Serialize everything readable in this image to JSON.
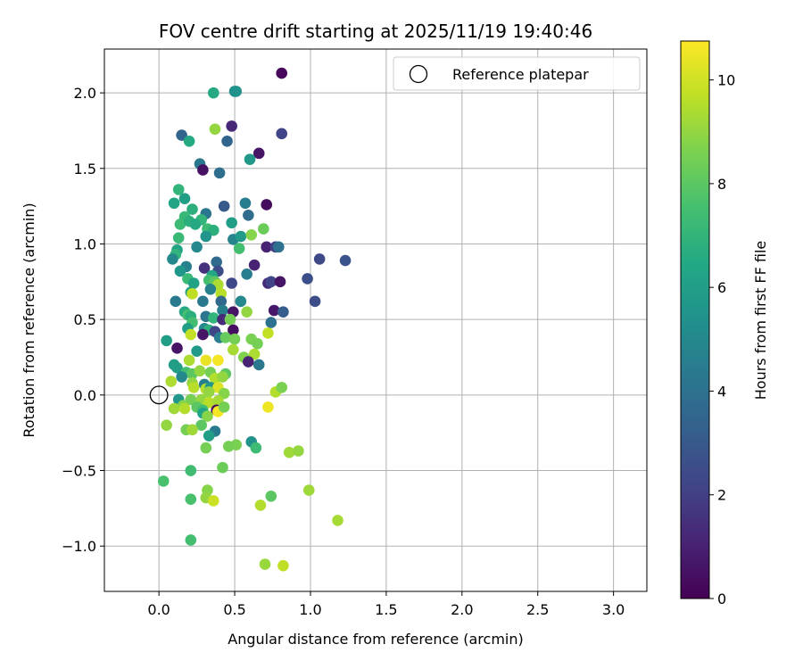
{
  "chart_data": {
    "type": "scatter",
    "title": "FOV centre drift starting at 2025/11/19 19:40:46",
    "xlabel": "Angular distance from reference (arcmin)",
    "ylabel": "Rotation from reference (arcmin)",
    "xlim": [
      -0.36,
      3.22
    ],
    "ylim": [
      -1.3,
      2.29
    ],
    "xticks": [
      0.0,
      0.5,
      1.0,
      1.5,
      2.0,
      2.5,
      3.0
    ],
    "xtick_labels": [
      "0.0",
      "0.5",
      "1.0",
      "1.5",
      "2.0",
      "2.5",
      "3.0"
    ],
    "yticks": [
      -1.0,
      -0.5,
      0.0,
      0.5,
      1.0,
      1.5,
      2.0
    ],
    "ytick_labels": [
      "−1.0",
      "−0.5",
      "0.0",
      "0.5",
      "1.0",
      "1.5",
      "2.0"
    ],
    "grid": true,
    "colorbar": {
      "label": "Hours from first FF file",
      "colormap": "viridis",
      "range": [
        0,
        10.75
      ],
      "ticks": [
        0,
        2,
        4,
        6,
        8,
        10
      ],
      "tick_labels": [
        "0",
        "2",
        "4",
        "6",
        "8",
        "10"
      ]
    },
    "legend": {
      "position": "top-right",
      "entries": [
        {
          "label": "Reference platepar",
          "marker": "open-circle"
        }
      ]
    },
    "reference_point": {
      "x": 0.0,
      "y": 0.0
    },
    "points": [
      {
        "x": 0.81,
        "y": 2.13,
        "h": 0.2
      },
      {
        "x": 0.5,
        "y": 2.01,
        "h": 5.3
      },
      {
        "x": 0.51,
        "y": 2.01,
        "h": 5.4
      },
      {
        "x": 0.36,
        "y": 2.0,
        "h": 6.5
      },
      {
        "x": 0.48,
        "y": 1.78,
        "h": 1.2
      },
      {
        "x": 0.37,
        "y": 1.76,
        "h": 9.0
      },
      {
        "x": 0.81,
        "y": 1.73,
        "h": 2.2
      },
      {
        "x": 0.15,
        "y": 1.72,
        "h": 3.5
      },
      {
        "x": 0.2,
        "y": 1.68,
        "h": 6.5
      },
      {
        "x": 0.45,
        "y": 1.68,
        "h": 3.5
      },
      {
        "x": 0.66,
        "y": 1.6,
        "h": 0.6
      },
      {
        "x": 0.6,
        "y": 1.56,
        "h": 5.7
      },
      {
        "x": 0.27,
        "y": 1.53,
        "h": 4.3
      },
      {
        "x": 0.29,
        "y": 1.49,
        "h": 0.5
      },
      {
        "x": 0.4,
        "y": 1.47,
        "h": 3.9
      },
      {
        "x": 0.13,
        "y": 1.36,
        "h": 7.0
      },
      {
        "x": 0.17,
        "y": 1.3,
        "h": 6.0
      },
      {
        "x": 0.1,
        "y": 1.27,
        "h": 6.3
      },
      {
        "x": 0.57,
        "y": 1.27,
        "h": 4.5
      },
      {
        "x": 0.43,
        "y": 1.25,
        "h": 3.0
      },
      {
        "x": 0.71,
        "y": 1.26,
        "h": 0.3
      },
      {
        "x": 0.22,
        "y": 1.23,
        "h": 6.8
      },
      {
        "x": 0.31,
        "y": 1.2,
        "h": 4.2
      },
      {
        "x": 0.59,
        "y": 1.19,
        "h": 3.8
      },
      {
        "x": 0.17,
        "y": 1.18,
        "h": 7.2
      },
      {
        "x": 0.28,
        "y": 1.16,
        "h": 7.0
      },
      {
        "x": 0.14,
        "y": 1.13,
        "h": 7.3
      },
      {
        "x": 0.2,
        "y": 1.15,
        "h": 6.8
      },
      {
        "x": 0.24,
        "y": 1.13,
        "h": 6.5
      },
      {
        "x": 0.32,
        "y": 1.1,
        "h": 7.3
      },
      {
        "x": 0.36,
        "y": 1.09,
        "h": 6.8
      },
      {
        "x": 0.48,
        "y": 1.14,
        "h": 6.0
      },
      {
        "x": 0.69,
        "y": 1.1,
        "h": 8.3
      },
      {
        "x": 0.31,
        "y": 1.05,
        "h": 5.5
      },
      {
        "x": 0.49,
        "y": 1.03,
        "h": 4.8
      },
      {
        "x": 0.54,
        "y": 1.05,
        "h": 5.8
      },
      {
        "x": 0.61,
        "y": 1.06,
        "h": 8.8
      },
      {
        "x": 0.13,
        "y": 1.04,
        "h": 7.2
      },
      {
        "x": 0.71,
        "y": 0.98,
        "h": 1.0
      },
      {
        "x": 0.77,
        "y": 0.98,
        "h": 2.0
      },
      {
        "x": 0.79,
        "y": 0.98,
        "h": 4.0
      },
      {
        "x": 0.25,
        "y": 0.98,
        "h": 5.0
      },
      {
        "x": 0.53,
        "y": 0.97,
        "h": 7.5
      },
      {
        "x": 0.12,
        "y": 0.96,
        "h": 6.2
      },
      {
        "x": 0.11,
        "y": 0.93,
        "h": 7.0
      },
      {
        "x": 1.06,
        "y": 0.9,
        "h": 2.4
      },
      {
        "x": 1.23,
        "y": 0.89,
        "h": 2.8
      },
      {
        "x": 0.09,
        "y": 0.9,
        "h": 5.0
      },
      {
        "x": 0.38,
        "y": 0.88,
        "h": 3.7
      },
      {
        "x": 0.63,
        "y": 0.86,
        "h": 1.0
      },
      {
        "x": 0.18,
        "y": 0.85,
        "h": 4.7
      },
      {
        "x": 0.3,
        "y": 0.84,
        "h": 1.5
      },
      {
        "x": 0.14,
        "y": 0.82,
        "h": 5.6
      },
      {
        "x": 0.39,
        "y": 0.82,
        "h": 2.5
      },
      {
        "x": 0.58,
        "y": 0.8,
        "h": 4.5
      },
      {
        "x": 0.35,
        "y": 0.79,
        "h": 6.4
      },
      {
        "x": 0.19,
        "y": 0.77,
        "h": 7.2
      },
      {
        "x": 0.33,
        "y": 0.76,
        "h": 7.5
      },
      {
        "x": 0.23,
        "y": 0.74,
        "h": 6.2
      },
      {
        "x": 0.37,
        "y": 0.75,
        "h": 8.0
      },
      {
        "x": 0.48,
        "y": 0.74,
        "h": 2.3
      },
      {
        "x": 0.72,
        "y": 0.74,
        "h": 1.3
      },
      {
        "x": 0.74,
        "y": 0.75,
        "h": 2.2
      },
      {
        "x": 0.8,
        "y": 0.75,
        "h": 0.6
      },
      {
        "x": 0.98,
        "y": 0.77,
        "h": 2.6
      },
      {
        "x": 0.39,
        "y": 0.73,
        "h": 9.4
      },
      {
        "x": 0.34,
        "y": 0.7,
        "h": 4.7
      },
      {
        "x": 0.21,
        "y": 0.68,
        "h": 6.0
      },
      {
        "x": 0.22,
        "y": 0.67,
        "h": 9.7
      },
      {
        "x": 0.41,
        "y": 0.67,
        "h": 9.6
      },
      {
        "x": 0.29,
        "y": 0.62,
        "h": 4.3
      },
      {
        "x": 0.41,
        "y": 0.62,
        "h": 3.6
      },
      {
        "x": 0.11,
        "y": 0.62,
        "h": 4.4
      },
      {
        "x": 0.54,
        "y": 0.62,
        "h": 5.0
      },
      {
        "x": 1.03,
        "y": 0.62,
        "h": 2.5
      },
      {
        "x": 0.42,
        "y": 0.56,
        "h": 4.6
      },
      {
        "x": 0.76,
        "y": 0.56,
        "h": 0.7
      },
      {
        "x": 0.82,
        "y": 0.55,
        "h": 3.2
      },
      {
        "x": 0.17,
        "y": 0.55,
        "h": 6.5
      },
      {
        "x": 0.19,
        "y": 0.53,
        "h": 7.5
      },
      {
        "x": 0.21,
        "y": 0.52,
        "h": 6.8
      },
      {
        "x": 0.31,
        "y": 0.52,
        "h": 4.2
      },
      {
        "x": 0.49,
        "y": 0.55,
        "h": 0.6
      },
      {
        "x": 0.58,
        "y": 0.55,
        "h": 9.0
      },
      {
        "x": 0.36,
        "y": 0.51,
        "h": 7.0
      },
      {
        "x": 0.42,
        "y": 0.5,
        "h": 1.3
      },
      {
        "x": 0.47,
        "y": 0.5,
        "h": 8.5
      },
      {
        "x": 0.22,
        "y": 0.48,
        "h": 7.5
      },
      {
        "x": 0.74,
        "y": 0.48,
        "h": 4.0
      },
      {
        "x": 0.19,
        "y": 0.44,
        "h": 6.0
      },
      {
        "x": 0.3,
        "y": 0.44,
        "h": 5.0
      },
      {
        "x": 0.33,
        "y": 0.43,
        "h": 6.8
      },
      {
        "x": 0.37,
        "y": 0.42,
        "h": 2.2
      },
      {
        "x": 0.49,
        "y": 0.43,
        "h": 0.4
      },
      {
        "x": 0.21,
        "y": 0.4,
        "h": 9.8
      },
      {
        "x": 0.29,
        "y": 0.4,
        "h": 0.6
      },
      {
        "x": 0.4,
        "y": 0.38,
        "h": 4.5
      },
      {
        "x": 0.44,
        "y": 0.38,
        "h": 8.2
      },
      {
        "x": 0.5,
        "y": 0.37,
        "h": 8.5
      },
      {
        "x": 0.61,
        "y": 0.37,
        "h": 8.6
      },
      {
        "x": 0.72,
        "y": 0.41,
        "h": 9.8
      },
      {
        "x": 0.05,
        "y": 0.36,
        "h": 6.0
      },
      {
        "x": 0.65,
        "y": 0.34,
        "h": 8.5
      },
      {
        "x": 0.12,
        "y": 0.31,
        "h": 0.6
      },
      {
        "x": 0.49,
        "y": 0.3,
        "h": 9.3
      },
      {
        "x": 0.25,
        "y": 0.29,
        "h": 5.8
      },
      {
        "x": 0.63,
        "y": 0.27,
        "h": 9.4
      },
      {
        "x": 0.56,
        "y": 0.25,
        "h": 8.7
      },
      {
        "x": 0.2,
        "y": 0.23,
        "h": 9.4
      },
      {
        "x": 0.31,
        "y": 0.23,
        "h": 10.4
      },
      {
        "x": 0.39,
        "y": 0.23,
        "h": 10.6
      },
      {
        "x": 0.59,
        "y": 0.22,
        "h": 1.0
      },
      {
        "x": 0.66,
        "y": 0.2,
        "h": 4.3
      },
      {
        "x": 0.1,
        "y": 0.2,
        "h": 6.0
      },
      {
        "x": 0.12,
        "y": 0.18,
        "h": 6.0
      },
      {
        "x": 0.18,
        "y": 0.15,
        "h": 7.5
      },
      {
        "x": 0.22,
        "y": 0.14,
        "h": 8.0
      },
      {
        "x": 0.27,
        "y": 0.16,
        "h": 9.0
      },
      {
        "x": 0.34,
        "y": 0.15,
        "h": 8.5
      },
      {
        "x": 0.44,
        "y": 0.14,
        "h": 8.0
      },
      {
        "x": 0.37,
        "y": 0.11,
        "h": 9.5
      },
      {
        "x": 0.42,
        "y": 0.12,
        "h": 9.0
      },
      {
        "x": 0.15,
        "y": 0.12,
        "h": 5.0
      },
      {
        "x": 0.08,
        "y": 0.09,
        "h": 9.4
      },
      {
        "x": 0.22,
        "y": 0.08,
        "h": 9.0
      },
      {
        "x": 0.3,
        "y": 0.07,
        "h": 4.6
      },
      {
        "x": 0.23,
        "y": 0.05,
        "h": 9.6
      },
      {
        "x": 0.31,
        "y": 0.04,
        "h": 9.5
      },
      {
        "x": 0.34,
        "y": 0.05,
        "h": 5.6
      },
      {
        "x": 0.39,
        "y": 0.05,
        "h": 10.2
      },
      {
        "x": 0.33,
        "y": 0.02,
        "h": 9.0
      },
      {
        "x": 0.43,
        "y": 0.01,
        "h": 8.8
      },
      {
        "x": 0.77,
        "y": 0.02,
        "h": 9.5
      },
      {
        "x": 0.81,
        "y": 0.05,
        "h": 8.6
      },
      {
        "x": 0.13,
        "y": -0.03,
        "h": 5.6
      },
      {
        "x": 0.21,
        "y": -0.03,
        "h": 8.5
      },
      {
        "x": 0.28,
        "y": -0.03,
        "h": 9.0
      },
      {
        "x": 0.33,
        "y": -0.05,
        "h": 9.6
      },
      {
        "x": 0.39,
        "y": -0.04,
        "h": 9.3
      },
      {
        "x": 0.16,
        "y": -0.07,
        "h": 8.8
      },
      {
        "x": 0.1,
        "y": -0.09,
        "h": 9.2
      },
      {
        "x": 0.17,
        "y": -0.09,
        "h": 9.5
      },
      {
        "x": 0.25,
        "y": -0.08,
        "h": 8.0
      },
      {
        "x": 0.29,
        "y": -0.1,
        "h": 7.5
      },
      {
        "x": 0.38,
        "y": -0.1,
        "h": 0.3
      },
      {
        "x": 0.39,
        "y": -0.11,
        "h": 10.6
      },
      {
        "x": 0.43,
        "y": -0.08,
        "h": 8.5
      },
      {
        "x": 0.72,
        "y": -0.08,
        "h": 10.5
      },
      {
        "x": 0.29,
        "y": -0.12,
        "h": 6.3
      },
      {
        "x": 0.32,
        "y": -0.14,
        "h": 8.8
      },
      {
        "x": 0.05,
        "y": -0.2,
        "h": 9.0
      },
      {
        "x": 0.28,
        "y": -0.2,
        "h": 8.0
      },
      {
        "x": 0.18,
        "y": -0.23,
        "h": 8.5
      },
      {
        "x": 0.22,
        "y": -0.23,
        "h": 9.2
      },
      {
        "x": 0.37,
        "y": -0.24,
        "h": 4.4
      },
      {
        "x": 0.33,
        "y": -0.27,
        "h": 6.0
      },
      {
        "x": 0.61,
        "y": -0.31,
        "h": 5.4
      },
      {
        "x": 0.51,
        "y": -0.33,
        "h": 8.6
      },
      {
        "x": 0.46,
        "y": -0.34,
        "h": 8.5
      },
      {
        "x": 0.64,
        "y": -0.35,
        "h": 7.3
      },
      {
        "x": 0.31,
        "y": -0.35,
        "h": 8.5
      },
      {
        "x": 0.86,
        "y": -0.38,
        "h": 9.2
      },
      {
        "x": 0.92,
        "y": -0.37,
        "h": 9.0
      },
      {
        "x": 0.42,
        "y": -0.48,
        "h": 8.3
      },
      {
        "x": 0.21,
        "y": -0.5,
        "h": 7.4
      },
      {
        "x": 0.03,
        "y": -0.57,
        "h": 7.6
      },
      {
        "x": 0.32,
        "y": -0.63,
        "h": 8.8
      },
      {
        "x": 0.99,
        "y": -0.63,
        "h": 9.2
      },
      {
        "x": 0.31,
        "y": -0.68,
        "h": 9.0
      },
      {
        "x": 0.21,
        "y": -0.69,
        "h": 7.6
      },
      {
        "x": 0.36,
        "y": -0.7,
        "h": 9.9
      },
      {
        "x": 0.74,
        "y": -0.67,
        "h": 8.0
      },
      {
        "x": 0.67,
        "y": -0.73,
        "h": 9.5
      },
      {
        "x": 1.18,
        "y": -0.83,
        "h": 9.3
      },
      {
        "x": 0.21,
        "y": -0.96,
        "h": 7.5
      },
      {
        "x": 0.7,
        "y": -1.12,
        "h": 9.1
      },
      {
        "x": 0.82,
        "y": -1.13,
        "h": 9.7
      }
    ]
  }
}
